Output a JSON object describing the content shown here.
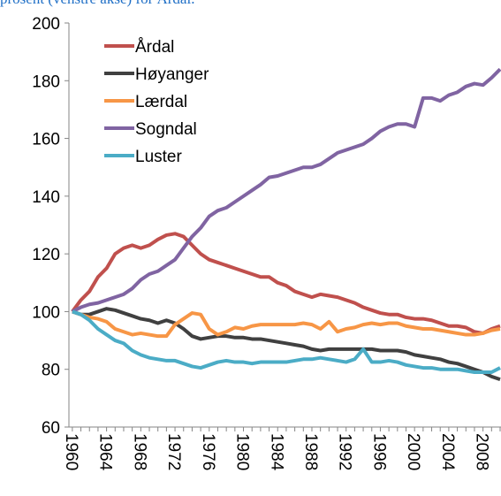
{
  "chart_data": {
    "type": "line",
    "subtitle": "prosent (venstre akse) for Årdal.",
    "x": [
      1960,
      1961,
      1962,
      1963,
      1964,
      1965,
      1966,
      1967,
      1968,
      1969,
      1970,
      1971,
      1972,
      1973,
      1974,
      1975,
      1976,
      1977,
      1978,
      1979,
      1980,
      1981,
      1982,
      1983,
      1984,
      1985,
      1986,
      1987,
      1988,
      1989,
      1990,
      1991,
      1992,
      1993,
      1994,
      1995,
      1996,
      1997,
      1998,
      1999,
      2000,
      2001,
      2002,
      2003,
      2004,
      2005,
      2006,
      2007,
      2008,
      2009,
      2010
    ],
    "xlim": [
      1959.6,
      2010
    ],
    "xticks": [
      1960,
      1964,
      1968,
      1972,
      1976,
      1980,
      1984,
      1988,
      1992,
      1996,
      2000,
      2004,
      2008
    ],
    "ylim": [
      60,
      200
    ],
    "yticks": [
      60,
      80,
      100,
      120,
      140,
      160,
      180,
      200
    ],
    "legend": "upper left",
    "series": [
      {
        "name": "Årdal",
        "color": "#c0504d",
        "values": [
          100,
          104,
          107,
          112,
          115,
          120,
          122,
          123,
          122,
          123,
          125,
          126.5,
          127,
          126,
          123,
          120,
          118,
          117,
          116,
          115,
          114,
          113,
          112,
          112,
          110,
          109,
          107,
          106,
          105,
          106,
          105.5,
          105,
          104,
          103,
          101.5,
          100.5,
          99.5,
          99,
          99,
          98,
          97.5,
          97.5,
          97,
          96,
          95,
          95,
          94.5,
          93,
          92.5,
          94,
          95
        ]
      },
      {
        "name": "Høyanger",
        "color": "#404040",
        "values": [
          100,
          99,
          99,
          100,
          101,
          100.5,
          99.5,
          98.5,
          97.5,
          97,
          96,
          97,
          96,
          94,
          91.5,
          90.5,
          91,
          91.5,
          91.5,
          91,
          91,
          90.5,
          90.5,
          90,
          89.5,
          89,
          88.5,
          88,
          87,
          86.5,
          87,
          87,
          87,
          87,
          87,
          87,
          86.5,
          86.5,
          86.5,
          86,
          85,
          84.5,
          84,
          83.5,
          82.5,
          82,
          81,
          80,
          79,
          77.5,
          76.5
        ]
      },
      {
        "name": "Lærdal",
        "color": "#f79646",
        "values": [
          100,
          99,
          98,
          97.5,
          96.5,
          94,
          93,
          92,
          92.5,
          92,
          91.5,
          91.5,
          95.5,
          97.5,
          99.5,
          99,
          94,
          92,
          93,
          94.5,
          94,
          95,
          95.5,
          95.5,
          95.5,
          95.5,
          95.5,
          96,
          95.5,
          94,
          96.5,
          93,
          94,
          94.5,
          95.5,
          96,
          95.5,
          96,
          96,
          95,
          94.5,
          94,
          94,
          93.5,
          93,
          92.5,
          92,
          92,
          92.5,
          93.5,
          94
        ]
      },
      {
        "name": "Sogndal",
        "color": "#8064a2",
        "values": [
          100,
          101.5,
          102.5,
          103,
          104,
          105,
          106,
          108,
          111,
          113,
          114,
          116,
          118,
          122,
          126,
          129,
          133,
          135,
          136,
          138,
          140,
          142,
          144,
          146.5,
          147,
          148,
          149,
          150,
          150,
          151,
          153,
          155,
          156,
          157,
          158,
          160,
          162.5,
          164,
          165,
          165,
          164,
          174,
          174,
          173,
          175,
          176,
          178,
          179,
          178.5,
          181,
          184
        ]
      },
      {
        "name": "Luster",
        "color": "#4bacc6",
        "values": [
          100,
          99,
          97,
          94,
          92,
          90,
          89,
          86.5,
          85,
          84,
          83.5,
          83,
          83,
          82,
          81,
          80.5,
          81.5,
          82.5,
          83,
          82.5,
          82.5,
          82,
          82.5,
          82.5,
          82.5,
          82.5,
          83,
          83.5,
          83.5,
          84,
          83.5,
          83,
          82.5,
          83.5,
          87,
          82.5,
          82.5,
          83,
          82.5,
          81.5,
          81,
          80.5,
          80.5,
          80,
          80,
          80,
          79.5,
          79,
          79,
          79,
          80.5
        ]
      }
    ]
  }
}
